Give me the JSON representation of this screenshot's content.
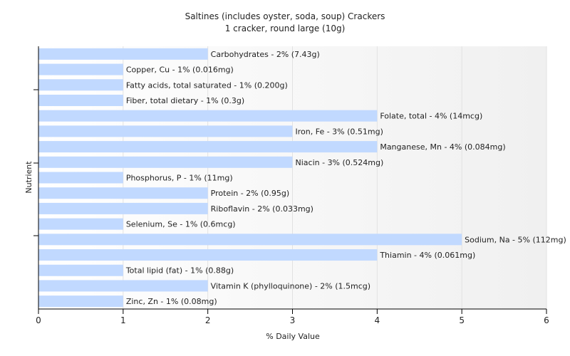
{
  "chart_data": {
    "type": "bar",
    "orientation": "horizontal",
    "title": "Saltines (includes oyster, soda, soup) Crackers",
    "subtitle": "1 cracker, round large (10g)",
    "xlabel": "% Daily Value",
    "ylabel": "Nutrient",
    "xlim": [
      0,
      6
    ],
    "xticks": [
      "0",
      "1",
      "2",
      "3",
      "4",
      "5",
      "6"
    ],
    "grid": true,
    "bar_color": "#c1d9ff",
    "categories": [
      "Carbohydrates",
      "Copper, Cu",
      "Fatty acids, total saturated",
      "Fiber, total dietary",
      "Folate, total",
      "Iron, Fe",
      "Manganese, Mn",
      "Niacin",
      "Phosphorus, P",
      "Protein",
      "Riboflavin",
      "Selenium, Se",
      "Sodium, Na",
      "Thiamin",
      "Total lipid (fat)",
      "Vitamin K (phylloquinone)",
      "Zinc, Zn"
    ],
    "values": [
      2,
      1,
      1,
      1,
      4,
      3,
      4,
      3,
      1,
      2,
      2,
      1,
      5,
      4,
      1,
      2,
      1
    ],
    "labels": [
      "Carbohydrates - 2% (7.43g)",
      "Copper, Cu - 1% (0.016mg)",
      "Fatty acids, total saturated - 1% (0.200g)",
      "Fiber, total dietary - 1% (0.3g)",
      "Folate, total - 4% (14mcg)",
      "Iron, Fe - 3% (0.51mg)",
      "Manganese, Mn - 4% (0.084mg)",
      "Niacin - 3% (0.524mg)",
      "Phosphorus, P - 1% (11mg)",
      "Protein - 2% (0.95g)",
      "Riboflavin - 2% (0.033mg)",
      "Selenium, Se - 1% (0.6mcg)",
      "Sodium, Na - 5% (112mg)",
      "Thiamin - 4% (0.061mg)",
      "Total lipid (fat) - 1% (0.88g)",
      "Vitamin K (phylloquinone) - 2% (1.5mcg)",
      "Zinc, Zn - 1% (0.08mg)"
    ]
  }
}
